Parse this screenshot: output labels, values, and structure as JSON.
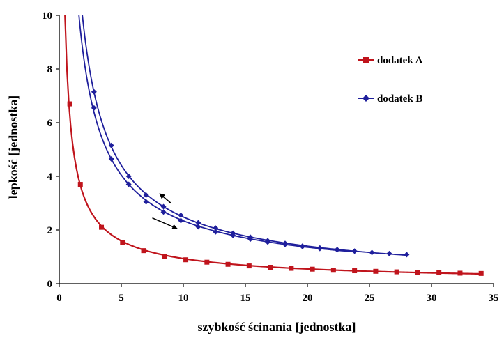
{
  "chart_data": {
    "type": "line",
    "xlabel": "szybkość ścinania [jednostka]",
    "ylabel": "lepkość [jednostka]",
    "xlim": [
      0,
      35
    ],
    "ylim": [
      0,
      10
    ],
    "xticks": [
      0,
      5,
      10,
      15,
      20,
      25,
      30,
      35
    ],
    "yticks": [
      0,
      2,
      4,
      6,
      8,
      10
    ],
    "xtick_labels": [
      "0",
      "5",
      "10",
      "15",
      "20",
      "25",
      "30",
      "35"
    ],
    "ytick_labels": [
      "0",
      "2",
      "4",
      "6",
      "8",
      "10"
    ],
    "grid": false,
    "legend_position": "top-right",
    "series": [
      {
        "name": "dodatek A",
        "color": "#c0141c",
        "marker": "square",
        "x": [
          0.85,
          1.7,
          3.4,
          5.1,
          6.8,
          8.5,
          10.2,
          11.9,
          13.6,
          15.3,
          17.0,
          18.7,
          20.4,
          22.1,
          23.8,
          25.5,
          27.2,
          28.9,
          30.6,
          32.3,
          34.0
        ],
        "y": [
          6.7,
          3.7,
          2.1,
          1.53,
          1.23,
          1.02,
          0.89,
          0.8,
          0.72,
          0.66,
          0.61,
          0.57,
          0.54,
          0.5,
          0.48,
          0.46,
          0.44,
          0.42,
          0.41,
          0.39,
          0.38
        ]
      },
      {
        "name": "dodatek B",
        "color": "#1f1f9c",
        "marker": "diamond",
        "branches": [
          {
            "x": [
              2.8,
              4.2,
              5.6,
              7.0,
              8.4,
              9.8,
              11.2,
              12.6,
              14.0,
              15.4,
              16.8,
              18.2,
              19.6,
              21.0,
              22.4,
              23.8,
              25.2,
              26.6,
              28.0
            ],
            "y": [
              7.15,
              5.15,
              4.0,
              3.3,
              2.87,
              2.55,
              2.27,
              2.07,
              1.88,
              1.73,
              1.6,
              1.5,
              1.4,
              1.33,
              1.27,
              1.21,
              1.16,
              1.12,
              1.08
            ]
          },
          {
            "x": [
              2.8,
              4.2,
              5.6,
              7.0,
              8.4,
              9.8,
              11.2,
              12.6,
              14.0,
              15.4,
              16.8,
              18.2,
              19.6,
              21.0,
              22.4,
              23.8
            ],
            "y": [
              6.55,
              4.65,
              3.7,
              3.05,
              2.67,
              2.35,
              2.12,
              1.93,
              1.8,
              1.66,
              1.55,
              1.46,
              1.38,
              1.31,
              1.26,
              1.21
            ]
          }
        ]
      }
    ],
    "annotations": [
      {
        "type": "arrow",
        "direction": "up-left",
        "from": [
          9.0,
          3.0
        ],
        "to": [
          8.1,
          3.35
        ]
      },
      {
        "type": "arrow",
        "direction": "down-right",
        "from": [
          7.5,
          2.45
        ],
        "to": [
          9.5,
          2.05
        ]
      }
    ]
  }
}
